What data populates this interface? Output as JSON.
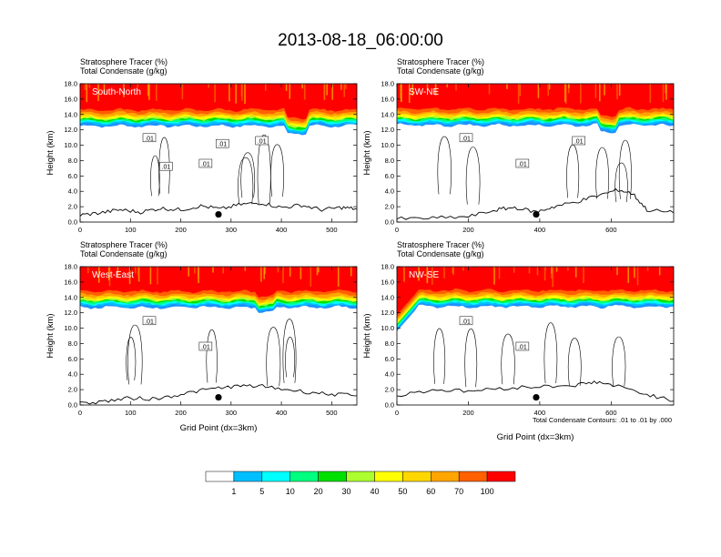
{
  "title": "2013-08-18_06:00:00",
  "chart_data": {
    "type": "heatmap",
    "panels": [
      {
        "name": "South-North",
        "line1": "Stratosphere Tracer   (%)",
        "line2": "Total Condensate   (g/kg)",
        "xlim": [
          0,
          550
        ],
        "xticks": [
          "0",
          "100",
          "200",
          "300",
          "400",
          "500"
        ],
        "xtick_values": [
          0,
          100,
          200,
          300,
          400,
          500
        ],
        "ylim": [
          0,
          18
        ],
        "yticks": [
          "0.0",
          "2.0",
          "4.0",
          "6.0",
          "8.0",
          "10.0",
          "12.0",
          "14.0",
          "16.0",
          "18.0"
        ],
        "ylabel": "Height (km)",
        "xlabel": "",
        "marker": {
          "x": 275,
          "y": 1.0
        },
        "tropopause_km": 12.5,
        "terrain": [
          [
            0,
            0.9
          ],
          [
            40,
            1.2
          ],
          [
            80,
            1.6
          ],
          [
            120,
            1.3
          ],
          [
            160,
            1.8
          ],
          [
            200,
            1.6
          ],
          [
            240,
            2.1
          ],
          [
            280,
            1.7
          ],
          [
            320,
            2.3
          ],
          [
            360,
            2.5
          ],
          [
            400,
            1.9
          ],
          [
            440,
            2.2
          ],
          [
            480,
            1.6
          ],
          [
            520,
            1.9
          ],
          [
            550,
            1.7
          ]
        ],
        "contour_labels": [
          ".01",
          ".01",
          ".01",
          ".01",
          ".01"
        ]
      },
      {
        "name": "SW-NE",
        "line1": "Stratosphere Tracer   (%)",
        "line2": "Total Condensate   (g/kg)",
        "xlim": [
          0,
          775
        ],
        "xticks": [
          "0",
          "200",
          "400",
          "600"
        ],
        "xtick_values": [
          0,
          200,
          400,
          600
        ],
        "ylim": [
          0,
          18
        ],
        "yticks": [
          "0.0",
          "2.0",
          "4.0",
          "6.0",
          "8.0",
          "10.0",
          "12.0",
          "14.0",
          "16.0",
          "18.0"
        ],
        "ylabel": "Height (km)",
        "xlabel": "",
        "marker": {
          "x": 390,
          "y": 1.0
        },
        "tropopause_km": 12.6,
        "terrain": [
          [
            0,
            0.4
          ],
          [
            100,
            0.5
          ],
          [
            200,
            0.7
          ],
          [
            280,
            1.6
          ],
          [
            330,
            1.9
          ],
          [
            390,
            1.3
          ],
          [
            440,
            2.0
          ],
          [
            500,
            2.6
          ],
          [
            560,
            3.4
          ],
          [
            620,
            4.2
          ],
          [
            660,
            3.7
          ],
          [
            700,
            1.6
          ],
          [
            775,
            1.2
          ]
        ],
        "contour_labels": [
          ".01",
          ".01",
          ".01"
        ]
      },
      {
        "name": "West-East",
        "line1": "Stratosphere Tracer   (%)",
        "line2": "Total Condensate   (g/kg)",
        "xlim": [
          0,
          550
        ],
        "xticks": [
          "0",
          "100",
          "200",
          "300",
          "400",
          "500"
        ],
        "xtick_values": [
          0,
          100,
          200,
          300,
          400,
          500
        ],
        "ylim": [
          0,
          18
        ],
        "yticks": [
          "0.0",
          "2.0",
          "4.0",
          "6.0",
          "8.0",
          "10.0",
          "12.0",
          "14.0",
          "16.0",
          "18.0"
        ],
        "ylabel": "Height (km)",
        "xlabel": "Grid Point (dx=3km)",
        "marker": {
          "x": 275,
          "y": 1.0
        },
        "tropopause_km": 12.7,
        "terrain": [
          [
            0,
            0.2
          ],
          [
            50,
            0.5
          ],
          [
            100,
            0.9
          ],
          [
            150,
            0.8
          ],
          [
            200,
            1.4
          ],
          [
            250,
            2.0
          ],
          [
            300,
            2.4
          ],
          [
            350,
            2.5
          ],
          [
            400,
            2.1
          ],
          [
            450,
            1.7
          ],
          [
            500,
            1.4
          ],
          [
            550,
            1.2
          ]
        ],
        "contour_labels": [
          ".01",
          ".01"
        ]
      },
      {
        "name": "NW-SE",
        "line1": "Stratosphere Tracer   (%)",
        "line2": "Total Condensate   (g/kg)",
        "xlim": [
          0,
          775
        ],
        "xticks": [
          "0",
          "200",
          "400",
          "600"
        ],
        "xtick_values": [
          0,
          200,
          400,
          600
        ],
        "ylim": [
          0,
          18
        ],
        "yticks": [
          "0.0",
          "2.0",
          "4.0",
          "6.0",
          "8.0",
          "10.0",
          "12.0",
          "14.0",
          "16.0",
          "18.0"
        ],
        "ylabel": "Height (km)",
        "xlabel": "Grid Point (dx=3km)",
        "marker": {
          "x": 390,
          "y": 1.0
        },
        "tropopause_km": 12.8,
        "terrain": [
          [
            0,
            1.2
          ],
          [
            100,
            2.0
          ],
          [
            200,
            1.8
          ],
          [
            300,
            2.2
          ],
          [
            400,
            2.4
          ],
          [
            500,
            2.6
          ],
          [
            560,
            3.0
          ],
          [
            620,
            2.4
          ],
          [
            700,
            1.4
          ],
          [
            775,
            0.5
          ]
        ],
        "contour_labels": [
          ".01",
          ".01"
        ],
        "footnote": "Total Condensate Contours: .01 to .01 by .000"
      }
    ],
    "colorbar": {
      "levels": [
        "1",
        "5",
        "10",
        "20",
        "30",
        "40",
        "50",
        "60",
        "70",
        "100"
      ],
      "colors": [
        "#ffffff",
        "#1e90ff",
        "#00bfff",
        "#00ffff",
        "#00ff7f",
        "#00e000",
        "#adff2f",
        "#ffff00",
        "#ffd700",
        "#ffa500",
        "#ff6000",
        "#ff0000"
      ]
    }
  }
}
